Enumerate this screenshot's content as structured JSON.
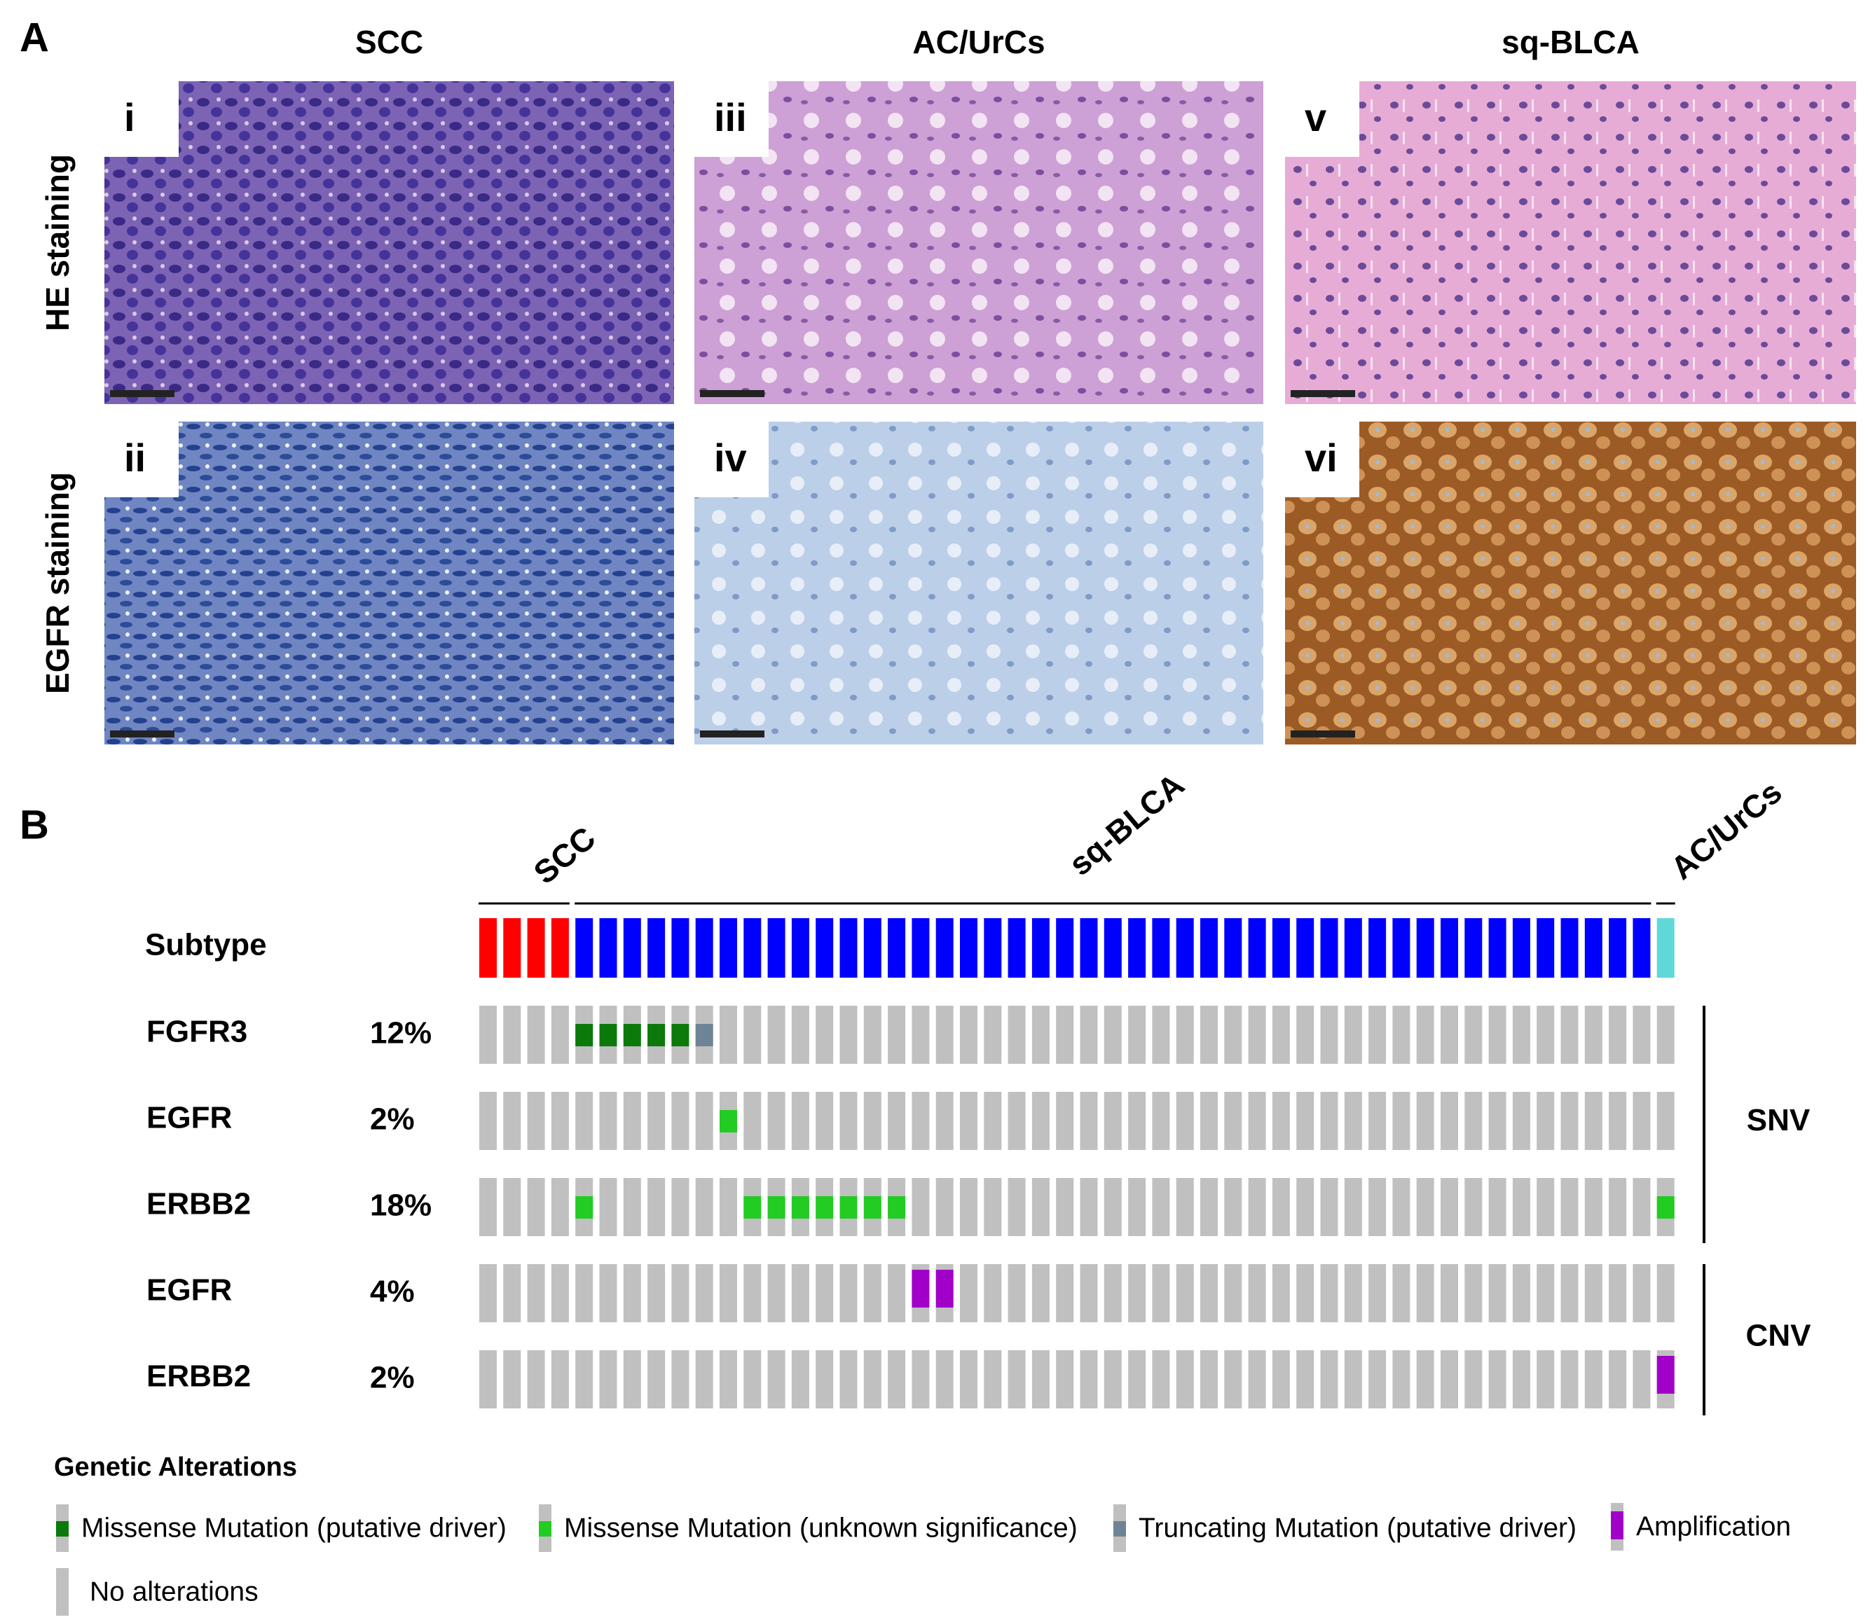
{
  "panel_a": {
    "label": "A",
    "columns": [
      "SCC",
      "AC/UrCs",
      "sq-BLCA"
    ],
    "rows": [
      "HE staining",
      "EGFR staining"
    ],
    "images": [
      "i",
      "iii",
      "v",
      "ii",
      "iv",
      "vi"
    ]
  },
  "panel_b": {
    "label": "B",
    "subtype_label": "Subtype",
    "groups": [
      {
        "name": "SCC",
        "color": "#ff0000",
        "count": 4
      },
      {
        "name": "sq-BLCA",
        "color": "#0000ff",
        "count": 45
      },
      {
        "name": "AC/UrCs",
        "color": "#5fd8d8",
        "count": 1
      }
    ],
    "sections": [
      {
        "label": "SNV",
        "rows": [
          {
            "gene": "FGFR3",
            "frequency": "12%",
            "alterations": [
              {
                "sample": 4,
                "type": 0
              },
              {
                "sample": 5,
                "type": 0
              },
              {
                "sample": 6,
                "type": 0
              },
              {
                "sample": 7,
                "type": 0
              },
              {
                "sample": 8,
                "type": 0
              },
              {
                "sample": 9,
                "type": 2
              }
            ]
          },
          {
            "gene": "EGFR",
            "frequency": "2%",
            "alterations": [
              {
                "sample": 10,
                "type": 1
              }
            ]
          },
          {
            "gene": "ERBB2",
            "frequency": "18%",
            "alterations": [
              {
                "sample": 4,
                "type": 1
              },
              {
                "sample": 11,
                "type": 1
              },
              {
                "sample": 12,
                "type": 1
              },
              {
                "sample": 13,
                "type": 1
              },
              {
                "sample": 14,
                "type": 1
              },
              {
                "sample": 15,
                "type": 1
              },
              {
                "sample": 16,
                "type": 1
              },
              {
                "sample": 17,
                "type": 1
              },
              {
                "sample": 49,
                "type": 1
              }
            ]
          }
        ]
      },
      {
        "label": "CNV",
        "rows": [
          {
            "gene": "EGFR",
            "frequency": "4%",
            "alterations": [
              {
                "sample": 18,
                "type": 3
              },
              {
                "sample": 19,
                "type": 3
              }
            ]
          },
          {
            "gene": "ERBB2",
            "frequency": "2%",
            "alterations": [
              {
                "sample": 49,
                "type": 3
              }
            ]
          }
        ]
      }
    ],
    "legend": {
      "title": "Genetic Alterations",
      "items": [
        {
          "label": "Missense Mutation (putative driver)",
          "color": "#0b7a0b"
        },
        {
          "label": "Missense Mutation (unknown significance)",
          "color": "#22cc22"
        },
        {
          "label": "Truncating Mutation (putative driver)",
          "color": "#6e8496"
        },
        {
          "label": "Amplification",
          "color": "#a100c8"
        },
        {
          "label": "No alterations",
          "color": "#c0c0c0"
        }
      ]
    }
  }
}
